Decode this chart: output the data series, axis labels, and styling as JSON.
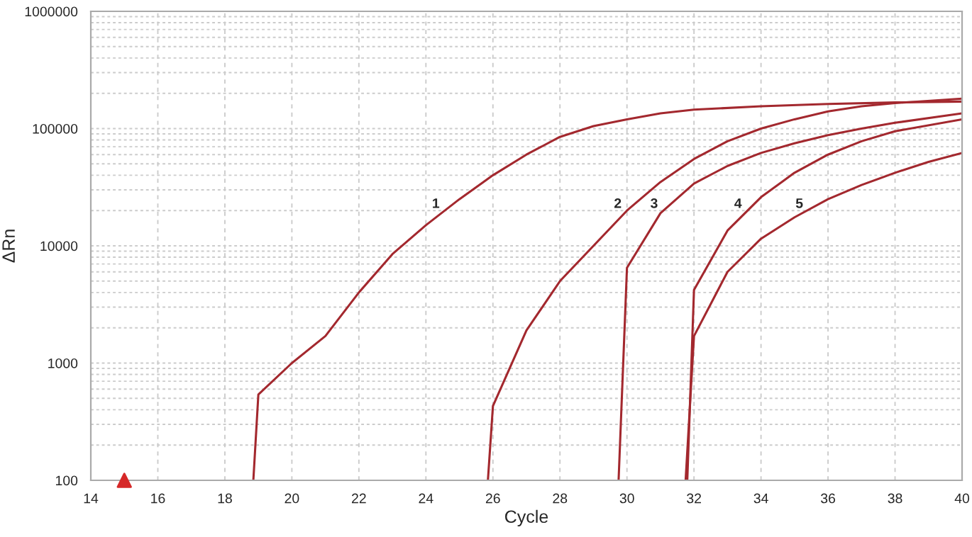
{
  "chart_data": {
    "type": "line",
    "xlabel": "Cycle",
    "ylabel": "ΔRn",
    "log": "y",
    "grid": true,
    "marker": "none",
    "line_style": "solid",
    "xlim": [
      14,
      40
    ],
    "xticks": [
      14,
      16,
      18,
      20,
      22,
      24,
      26,
      28,
      30,
      32,
      34,
      36,
      38,
      40
    ],
    "ylim": [
      100,
      1000000
    ],
    "yticks": [
      100,
      1000,
      10000,
      100000,
      1000000
    ],
    "series": [
      {
        "name": "1",
        "color": "#a3282e",
        "x": [
          18.85,
          19,
          20,
          21,
          22,
          23,
          24,
          25,
          26,
          27,
          28,
          29,
          30,
          31,
          32,
          34,
          36,
          38,
          40
        ],
        "values": [
          100,
          540,
          1000,
          1700,
          4000,
          8500,
          15000,
          25000,
          40000,
          60000,
          85000,
          105000,
          120000,
          135000,
          145000,
          155000,
          162000,
          167000,
          170000
        ]
      },
      {
        "name": "2",
        "color": "#a3282e",
        "x": [
          25.85,
          26,
          27,
          28,
          29,
          30,
          31,
          32,
          33,
          34,
          35,
          36,
          37,
          38,
          40
        ],
        "values": [
          100,
          430,
          1900,
          5000,
          10000,
          20000,
          35000,
          55000,
          78000,
          100000,
          120000,
          140000,
          155000,
          165000,
          180000
        ]
      },
      {
        "name": "3",
        "color": "#a3282e",
        "x": [
          29.75,
          30,
          31,
          32,
          33,
          34,
          35,
          36,
          37,
          38,
          40
        ],
        "values": [
          100,
          6500,
          19000,
          34000,
          48000,
          62000,
          75000,
          88000,
          100000,
          112000,
          135000
        ]
      },
      {
        "name": "4",
        "color": "#a3282e",
        "x": [
          31.8,
          32,
          33,
          34,
          35,
          36,
          37,
          38,
          40
        ],
        "values": [
          100,
          4200,
          13500,
          26000,
          42000,
          60000,
          78000,
          95000,
          120000
        ]
      },
      {
        "name": "5",
        "color": "#a3282e",
        "x": [
          31.75,
          32,
          33,
          34,
          35,
          36,
          37,
          38,
          39,
          40
        ],
        "values": [
          100,
          1700,
          6000,
          11500,
          17500,
          25000,
          33000,
          42000,
          52000,
          62000
        ]
      }
    ]
  }
}
